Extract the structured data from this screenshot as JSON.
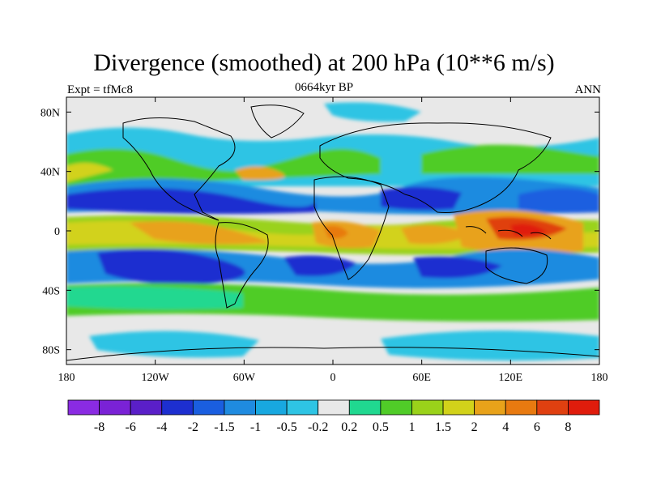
{
  "title": "Divergence (smoothed) at 200 hPa (10**6 m/s)",
  "experiment": "Expt = tfMc8",
  "period": "0664kyr BP",
  "season": "ANN",
  "axes": {
    "lat_ticks": [
      "80N",
      "40N",
      "0",
      "40S",
      "80S"
    ],
    "lat_values": [
      80,
      40,
      0,
      -40,
      -80
    ],
    "lon_ticks": [
      "180",
      "120W",
      "60W",
      "0",
      "60E",
      "120E",
      "180"
    ],
    "lon_values": [
      -180,
      -120,
      -60,
      0,
      60,
      120,
      180
    ]
  },
  "colorbar": {
    "labels": [
      "-8",
      "-6",
      "-4",
      "-2",
      "-1.5",
      "-1",
      "-0.5",
      "-0.2",
      "0.2",
      "0.5",
      "1",
      "1.5",
      "2",
      "4",
      "6",
      "8"
    ],
    "colors": [
      "#8a2be2",
      "#7a22d6",
      "#5a1fc8",
      "#1d2fd0",
      "#1a5ee0",
      "#1f8be0",
      "#18a8e0",
      "#2ec4e4",
      "#e8e8e8",
      "#20d890",
      "#50cc28",
      "#9ad21a",
      "#d2d21a",
      "#e8a21a",
      "#e87a10",
      "#e04010",
      "#e01c0c"
    ]
  },
  "chart_data": {
    "type": "heatmap",
    "title": "Divergence (smoothed) at 200 hPa (10**6 m/s)",
    "field": "divergence at 200 hPa",
    "units": "10**6 m/s",
    "projection": "cylindrical equidistant",
    "lon_range": [
      -180,
      180
    ],
    "lat_range": [
      -90,
      90
    ],
    "contour_levels": [
      -8,
      -6,
      -4,
      -2,
      -1.5,
      -1,
      -0.5,
      -0.2,
      0.2,
      0.5,
      1,
      1.5,
      2,
      4,
      6,
      8
    ],
    "features": [
      {
        "region": "Maritime Continent / West Pacific",
        "sign": "divergence",
        "approx_max": 6
      },
      {
        "region": "Equatorial Africa",
        "sign": "divergence",
        "approx_max": 4
      },
      {
        "region": "Central Africa / Congo",
        "sign": "divergence",
        "approx_max": 4
      },
      {
        "region": "Indian Ocean",
        "sign": "divergence",
        "approx_max": 2
      },
      {
        "region": "Subtropical North Pacific",
        "sign": "convergence",
        "approx_min": -2
      },
      {
        "region": "Subtropical North Atlantic / Sahara",
        "sign": "convergence",
        "approx_min": -2
      },
      {
        "region": "Subtropical South Pacific",
        "sign": "convergence",
        "approx_min": -2
      },
      {
        "region": "Subtropical South Atlantic",
        "sign": "convergence",
        "approx_min": -2
      },
      {
        "region": "Subtropical South Indian Ocean",
        "sign": "convergence",
        "approx_min": -2
      }
    ]
  }
}
